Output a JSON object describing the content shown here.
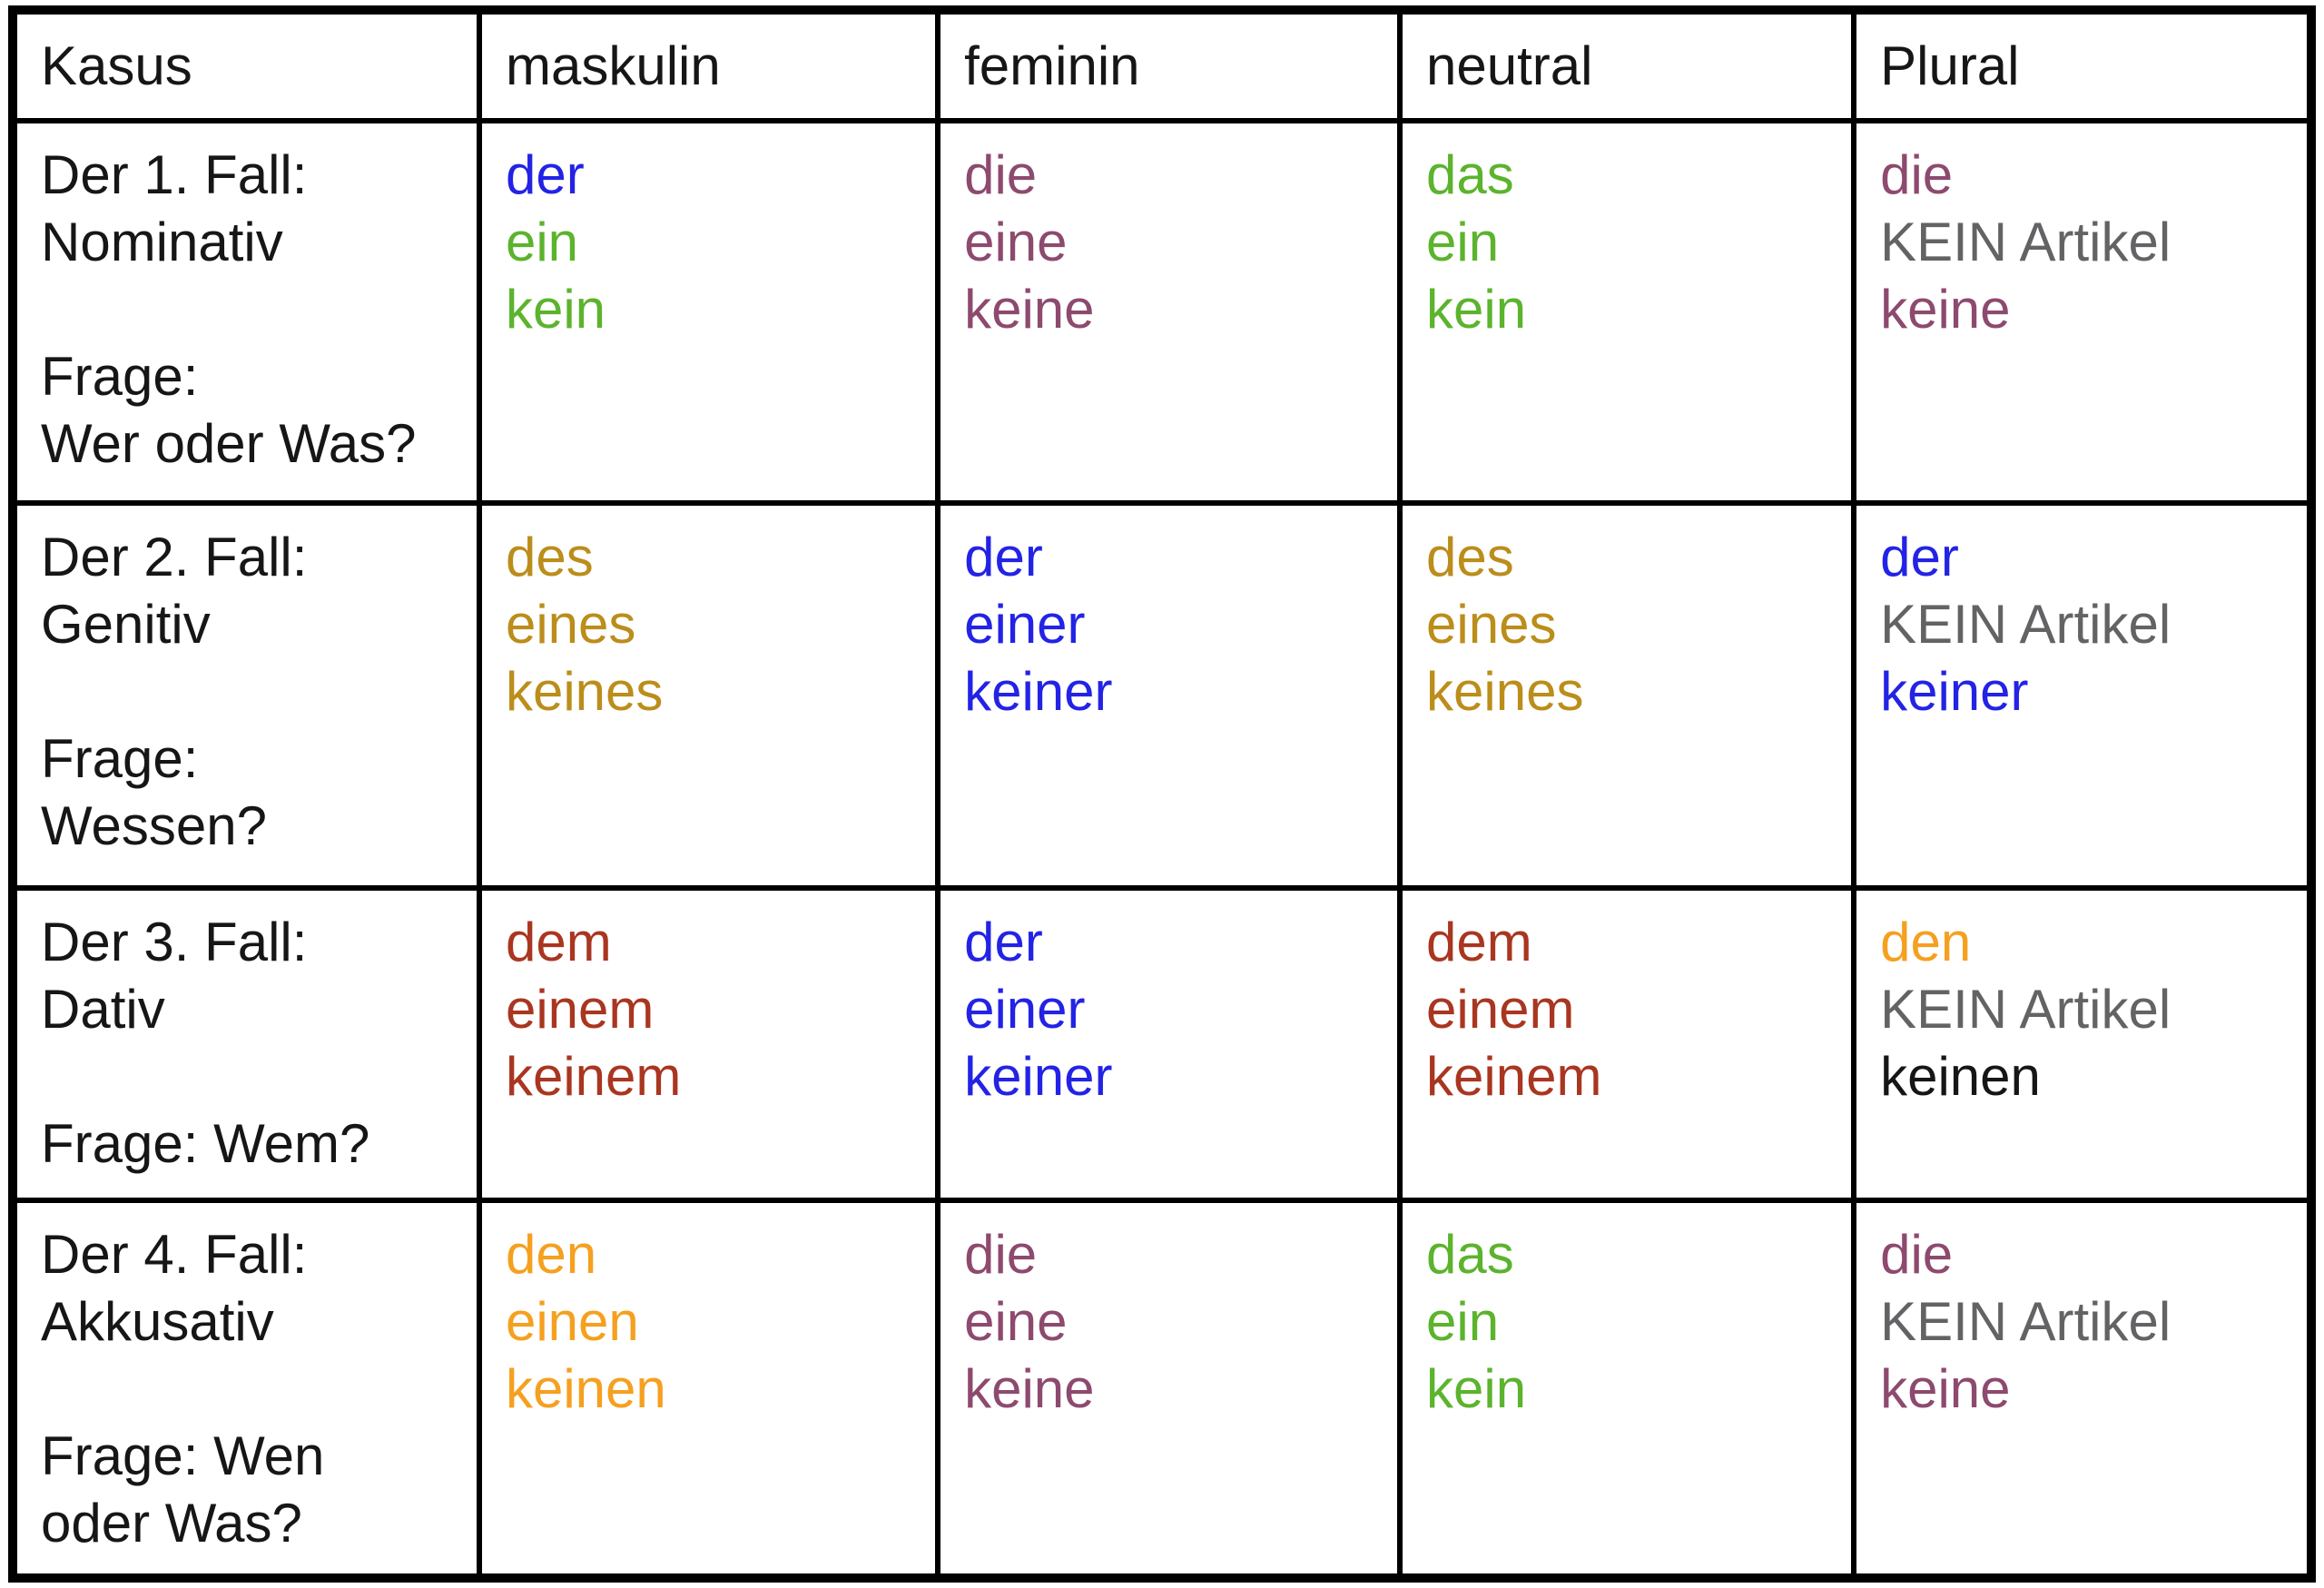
{
  "colors": {
    "black": "#161616",
    "blue": "#2323e5",
    "green": "#5cb32d",
    "purple": "#8d4a6e",
    "gold": "#bb8d1b",
    "darkred": "#a93620",
    "orange": "#f5a01f",
    "gray": "#636366"
  },
  "table": {
    "headers": [
      "Kasus",
      "maskulin",
      "feminin",
      "neutral",
      "Plural"
    ],
    "rows": [
      {
        "key": "nominativ",
        "case_lines": [
          "Der 1. Fall:",
          "Nominativ",
          "",
          "Frage:",
          "Wer oder Was?"
        ],
        "cells": [
          {
            "col": "maskulin",
            "lines": [
              {
                "text": "der",
                "color": "blue"
              },
              {
                "text": "ein",
                "color": "green"
              },
              {
                "text": "kein",
                "color": "green"
              }
            ]
          },
          {
            "col": "feminin",
            "lines": [
              {
                "text": "die",
                "color": "purple"
              },
              {
                "text": "eine",
                "color": "purple"
              },
              {
                "text": "keine",
                "color": "purple"
              }
            ]
          },
          {
            "col": "neutral",
            "lines": [
              {
                "text": "das",
                "color": "green"
              },
              {
                "text": "ein",
                "color": "green"
              },
              {
                "text": "kein",
                "color": "green"
              }
            ]
          },
          {
            "col": "plural",
            "lines": [
              {
                "text": "die",
                "color": "purple"
              },
              {
                "text": "KEIN Artikel",
                "color": "gray"
              },
              {
                "text": "keine",
                "color": "purple"
              }
            ]
          }
        ]
      },
      {
        "key": "genitiv",
        "case_lines": [
          "Der 2. Fall:",
          "Genitiv",
          "",
          "Frage:",
          "Wessen?"
        ],
        "cells": [
          {
            "col": "maskulin",
            "lines": [
              {
                "text": "des",
                "color": "gold"
              },
              {
                "text": "eines",
                "color": "gold"
              },
              {
                "text": "keines",
                "color": "gold"
              }
            ]
          },
          {
            "col": "feminin",
            "lines": [
              {
                "text": "der",
                "color": "blue"
              },
              {
                "text": "einer",
                "color": "blue"
              },
              {
                "text": "keiner",
                "color": "blue"
              }
            ]
          },
          {
            "col": "neutral",
            "lines": [
              {
                "text": "des",
                "color": "gold"
              },
              {
                "text": "eines",
                "color": "gold"
              },
              {
                "text": "keines",
                "color": "gold"
              }
            ]
          },
          {
            "col": "plural",
            "lines": [
              {
                "text": "der",
                "color": "blue"
              },
              {
                "text": "KEIN Artikel",
                "color": "gray"
              },
              {
                "text": "keiner",
                "color": "blue"
              }
            ]
          }
        ]
      },
      {
        "key": "dativ",
        "case_lines": [
          "Der 3. Fall:",
          "Dativ",
          "",
          "Frage: Wem?"
        ],
        "cells": [
          {
            "col": "maskulin",
            "lines": [
              {
                "text": "dem",
                "color": "darkred"
              },
              {
                "text": "einem",
                "color": "darkred"
              },
              {
                "text": "keinem",
                "color": "darkred"
              }
            ]
          },
          {
            "col": "feminin",
            "lines": [
              {
                "text": "der",
                "color": "blue"
              },
              {
                "text": "einer",
                "color": "blue"
              },
              {
                "text": "keiner",
                "color": "blue"
              }
            ]
          },
          {
            "col": "neutral",
            "lines": [
              {
                "text": "dem",
                "color": "darkred"
              },
              {
                "text": "einem",
                "color": "darkred"
              },
              {
                "text": "keinem",
                "color": "darkred"
              }
            ]
          },
          {
            "col": "plural",
            "lines": [
              {
                "text": "den",
                "color": "orange"
              },
              {
                "text": "KEIN Artikel",
                "color": "gray"
              },
              {
                "text": "keinen",
                "color": "black"
              }
            ]
          }
        ]
      },
      {
        "key": "akkusativ",
        "case_lines": [
          "Der 4. Fall:",
          "Akkusativ",
          "",
          "Frage: Wen",
          "oder Was?"
        ],
        "cells": [
          {
            "col": "maskulin",
            "lines": [
              {
                "text": "den",
                "color": "orange"
              },
              {
                "text": "einen",
                "color": "orange"
              },
              {
                "text": "keinen",
                "color": "orange"
              }
            ]
          },
          {
            "col": "feminin",
            "lines": [
              {
                "text": "die",
                "color": "purple"
              },
              {
                "text": "eine",
                "color": "purple"
              },
              {
                "text": "keine",
                "color": "purple"
              }
            ]
          },
          {
            "col": "neutral",
            "lines": [
              {
                "text": "das",
                "color": "green"
              },
              {
                "text": "ein",
                "color": "green"
              },
              {
                "text": "kein",
                "color": "green"
              }
            ]
          },
          {
            "col": "plural",
            "lines": [
              {
                "text": "die",
                "color": "purple"
              },
              {
                "text": "KEIN Artikel",
                "color": "gray"
              },
              {
                "text": "keine",
                "color": "purple"
              }
            ]
          }
        ]
      }
    ]
  }
}
